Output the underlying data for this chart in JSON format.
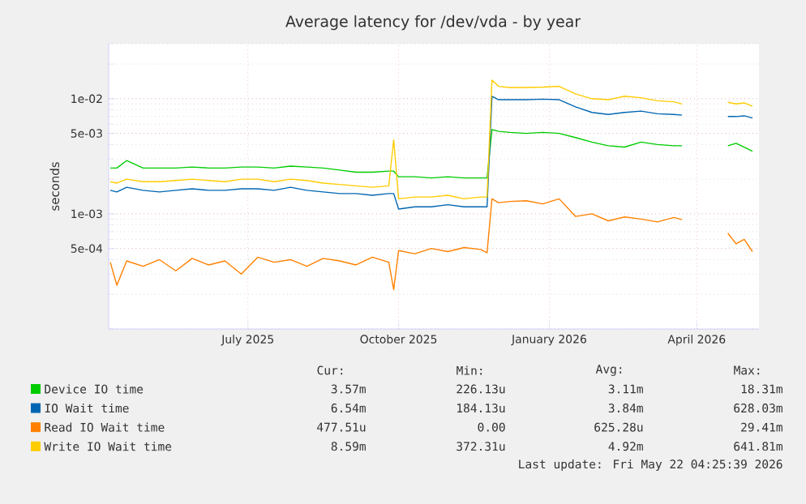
{
  "chart_data": {
    "type": "line",
    "title": "Average latency for /dev/vda - by year",
    "ylabel": "seconds",
    "log": true,
    "grid": true,
    "legend": "bottom",
    "xlim": [
      "2025-04-07",
      "2026-05-09"
    ],
    "ylim": [
      0.0001,
      0.03
    ],
    "xticks": [
      {
        "value": "2025-07-01",
        "label": "July 2025"
      },
      {
        "value": "2025-10-01",
        "label": "October 2025"
      },
      {
        "value": "2026-01-01",
        "label": "January 2026"
      },
      {
        "value": "2026-04-01",
        "label": "April 2026"
      }
    ],
    "yticks": [
      {
        "value": 0.0005,
        "label": "5e-04"
      },
      {
        "value": 0.001,
        "label": "1e-03"
      },
      {
        "value": 0.005,
        "label": "5e-03"
      },
      {
        "value": 0.01,
        "label": "1e-02"
      }
    ],
    "x": [
      "2025-04-08",
      "2025-04-12",
      "2025-04-18",
      "2025-04-28",
      "2025-05-08",
      "2025-05-18",
      "2025-05-28",
      "2025-06-07",
      "2025-06-17",
      "2025-06-27",
      "2025-07-07",
      "2025-07-17",
      "2025-07-27",
      "2025-08-06",
      "2025-08-16",
      "2025-08-26",
      "2025-09-05",
      "2025-09-15",
      "2025-09-25",
      "2025-09-28",
      "2025-10-01",
      "2025-10-11",
      "2025-10-21",
      "2025-10-31",
      "2025-11-10",
      "2025-11-20",
      "2025-11-24",
      "2025-11-27",
      "2025-12-01",
      "2025-12-08",
      "2025-12-18",
      "2025-12-28",
      "2026-01-07",
      "2026-01-17",
      "2026-01-27",
      "2026-02-06",
      "2026-02-16",
      "2026-02-26",
      "2026-03-08",
      "2026-03-18",
      "2026-03-23",
      "2026-04-05",
      "2026-04-20",
      "2026-04-25",
      "2026-04-30",
      "2026-05-05"
    ],
    "series": [
      {
        "name": "Device IO time",
        "color": "#00cc00",
        "values": [
          0.0025,
          0.0025,
          0.0029,
          0.0025,
          0.0025,
          0.0025,
          0.00255,
          0.0025,
          0.0025,
          0.00255,
          0.00255,
          0.0025,
          0.0026,
          0.00255,
          0.0025,
          0.0024,
          0.0023,
          0.0023,
          0.00235,
          0.00235,
          0.0021,
          0.0021,
          0.00205,
          0.0021,
          0.00205,
          0.00205,
          0.00205,
          0.0054,
          0.0052,
          0.0051,
          0.005,
          0.0051,
          0.005,
          0.0046,
          0.0042,
          0.0039,
          0.0038,
          0.0042,
          0.004,
          0.0039,
          0.0039,
          null,
          0.0039,
          0.0041,
          0.0038,
          0.0035
        ]
      },
      {
        "name": "IO Wait time",
        "color": "#0066b3",
        "values": [
          0.0016,
          0.00155,
          0.0017,
          0.0016,
          0.00155,
          0.0016,
          0.00165,
          0.0016,
          0.0016,
          0.00165,
          0.00165,
          0.0016,
          0.0017,
          0.0016,
          0.00155,
          0.0015,
          0.0015,
          0.00145,
          0.0015,
          0.0015,
          0.0011,
          0.00115,
          0.00115,
          0.0012,
          0.00115,
          0.00115,
          0.00115,
          0.0105,
          0.0098,
          0.0098,
          0.0098,
          0.0099,
          0.0098,
          0.0085,
          0.0076,
          0.0073,
          0.0076,
          0.0078,
          0.0074,
          0.0073,
          0.0072,
          null,
          0.007,
          0.007,
          0.0071,
          0.0068
        ]
      },
      {
        "name": "Read IO Wait time",
        "color": "#ff8000",
        "values": [
          0.00038,
          0.00024,
          0.00039,
          0.00035,
          0.0004,
          0.00032,
          0.00041,
          0.00036,
          0.00039,
          0.0003,
          0.00042,
          0.00038,
          0.0004,
          0.00035,
          0.00041,
          0.00039,
          0.00036,
          0.00042,
          0.00038,
          0.00022,
          0.00048,
          0.00045,
          0.0005,
          0.00047,
          0.00051,
          0.00049,
          0.00046,
          0.00135,
          0.00125,
          0.00128,
          0.0013,
          0.00122,
          0.00135,
          0.00095,
          0.001,
          0.00087,
          0.00094,
          0.0009,
          0.00085,
          0.00093,
          0.00089,
          null,
          0.00068,
          0.00055,
          0.0006,
          0.00047
        ]
      },
      {
        "name": "Write IO Wait time",
        "color": "#ffcc00",
        "values": [
          0.0019,
          0.00185,
          0.002,
          0.0019,
          0.0019,
          0.00195,
          0.002,
          0.00195,
          0.0019,
          0.002,
          0.002,
          0.0019,
          0.002,
          0.00195,
          0.00185,
          0.0018,
          0.00175,
          0.0017,
          0.00175,
          0.0044,
          0.00135,
          0.0014,
          0.0014,
          0.00145,
          0.00135,
          0.0014,
          0.0014,
          0.0145,
          0.0128,
          0.0125,
          0.0125,
          0.0126,
          0.0128,
          0.011,
          0.01,
          0.0098,
          0.0105,
          0.0102,
          0.0096,
          0.0094,
          0.009,
          null,
          0.0093,
          0.009,
          0.0092,
          0.0086
        ]
      }
    ],
    "annotations": [
      "Cur:",
      "Min:",
      "Avg:",
      "Max:",
      "3.57m",
      "226.13u",
      "3.11m",
      "18.31m",
      "6.54m",
      "184.13u",
      "3.84m",
      "628.03m",
      "477.51u",
      "0.00",
      "625.28u",
      "29.41m",
      "8.59m",
      "372.31u",
      "4.92m",
      "641.81m",
      "Last update: Fri May 22 04:25:39 2026"
    ]
  }
}
